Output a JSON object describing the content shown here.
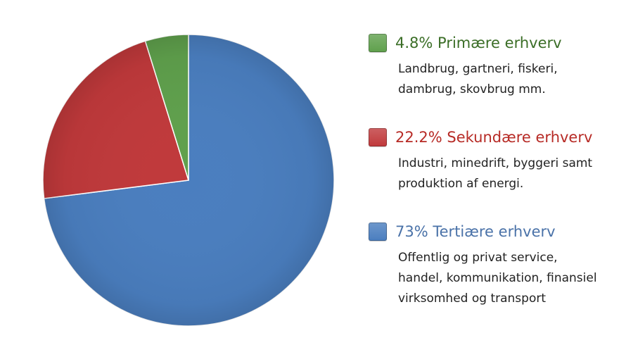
{
  "chart_data": {
    "type": "pie",
    "title": "",
    "start_angle_deg": 0,
    "direction": "clockwise",
    "slices": [
      {
        "label": "Tertiære erhverv",
        "value": 73,
        "percent_label": "73%",
        "color": "#4a7ebf",
        "description": [
          "Offentlig og privat service,",
          "handel, kommunikation, finansiel",
          "virksomhed og transport"
        ]
      },
      {
        "label": "Sekundære erhverv",
        "value": 22.2,
        "percent_label": "22.2%",
        "color": "#c0393b",
        "description": [
          "Industri, minedrift, byggeri samt",
          "produktion af energi."
        ]
      },
      {
        "label": "Primære erhverv",
        "value": 4.8,
        "percent_label": "4.8%",
        "color": "#5fa04c",
        "description": [
          "Landbrug, gartneri, fiskeri,",
          "dambrug, skovbrug mm."
        ]
      }
    ]
  },
  "legend": {
    "order": [
      2,
      1,
      0
    ],
    "title_colors": [
      "#3b6e27",
      "#b72b26",
      "#4a72a8"
    ]
  }
}
